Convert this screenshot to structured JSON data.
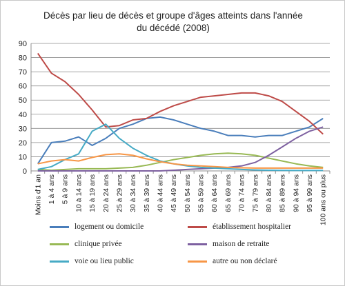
{
  "chart_data": {
    "type": "line",
    "title_line1": "Décès par lieu de décès et groupe d'âges atteints dans l'année",
    "title_line2": "du décédé (2008)",
    "xlabel": "",
    "ylabel": "",
    "ylim": [
      0,
      90
    ],
    "yticks": [
      "0",
      "10",
      "20",
      "30",
      "40",
      "50",
      "60",
      "70",
      "80",
      "90"
    ],
    "grid": true,
    "legend_position": "bottom",
    "categories": [
      "Moins d'1 an",
      "1 à 4 ans",
      "5 à 9 ans",
      "10 à 14 ans",
      "15 à 19 ans",
      "20 à 24 ans",
      "25 à 29 ans",
      "30 à 34 ans",
      "35 à 39 ans",
      "40 à 44 ans",
      "45 à 49 ans",
      "50 à 54 ans",
      "55 à 59 ans",
      "60 à 64 ans",
      "65 à 69 ans",
      "70 à 74 ans",
      "75 à 79 ans",
      "80 à 84 ans",
      "85 à 89 ans",
      "90 à 94 ans",
      "95 à 99 ans",
      "100 ans ou plus"
    ],
    "series": [
      {
        "name": "logement ou domicile",
        "color": "#4a7ebb",
        "values": [
          5,
          20,
          21,
          24,
          18,
          23,
          30,
          33,
          37,
          38,
          36,
          33,
          30,
          28,
          25,
          25,
          24,
          25,
          25,
          28,
          31,
          37
        ]
      },
      {
        "name": "établissement hospitalier",
        "color": "#be4b48",
        "values": [
          83,
          69,
          63,
          54,
          43,
          31,
          32,
          36,
          37,
          42,
          46,
          49,
          52,
          53,
          54,
          55,
          55,
          53,
          49,
          42,
          35,
          26
        ]
      },
      {
        "name": "clinique privée",
        "color": "#98b954",
        "values": [
          1,
          0.5,
          1,
          1.5,
          1.5,
          1.5,
          2,
          2.5,
          4,
          6,
          8,
          9.5,
          11,
          12,
          12.5,
          12,
          11,
          9,
          7,
          5,
          3.5,
          2.5
        ]
      },
      {
        "name": "maison de retraite",
        "color": "#7d60a0",
        "values": [
          0,
          0,
          0,
          0,
          0,
          0,
          0,
          0,
          0,
          0,
          0.5,
          1,
          1.5,
          2,
          2.5,
          3.5,
          6,
          11,
          17,
          23,
          28,
          31
        ]
      },
      {
        "name": "voie ou lieu public",
        "color": "#46aac5",
        "values": [
          1,
          3,
          8,
          12,
          28,
          33,
          23,
          16,
          11,
          7,
          5,
          3.5,
          2.5,
          2,
          1.5,
          1,
          0.7,
          0.5,
          0.4,
          0.3,
          0.3,
          0.3
        ]
      },
      {
        "name": "autre ou non déclaré",
        "color": "#f79646",
        "values": [
          5,
          7,
          8,
          7,
          9.5,
          11.5,
          12,
          11,
          8.5,
          6.5,
          5,
          4,
          3.5,
          3,
          2.5,
          2.2,
          2,
          2,
          2,
          2,
          2,
          2
        ]
      }
    ]
  }
}
